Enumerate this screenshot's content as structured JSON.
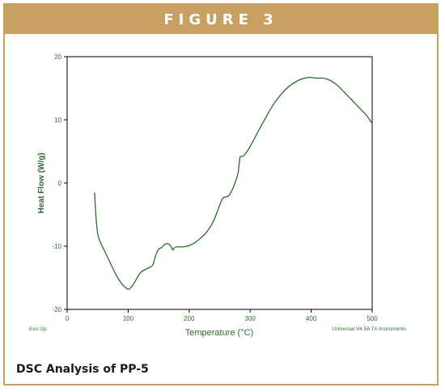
{
  "figure": {
    "header": "FIGURE 3",
    "caption": "DSC Analysis of PP-5"
  },
  "colors": {
    "accent": "#c7a062",
    "curve": "#2e6b2e",
    "axis_label": "#2e6b2e"
  },
  "chart_data": {
    "type": "line",
    "title": "",
    "xlabel": "Temperature (°C)",
    "ylabel": "Heat Flow (W/g)",
    "xlim": [
      0,
      500
    ],
    "ylim": [
      -20,
      20
    ],
    "x_ticks": [
      0,
      100,
      200,
      300,
      400,
      500
    ],
    "y_ticks": [
      -20,
      -10,
      0,
      10,
      20
    ],
    "grid": false,
    "annotations": {
      "bottom_left": "Exo Up",
      "bottom_right": "Universal V4.5A TA Instruments"
    },
    "series": [
      {
        "x": [
          45,
          47,
          50,
          55,
          60,
          70,
          80,
          90,
          100,
          105,
          110,
          120,
          130,
          140,
          145,
          150,
          155,
          160,
          165,
          170,
          173,
          175,
          180,
          190,
          200,
          210,
          220,
          230,
          240,
          250,
          255,
          260,
          265,
          270,
          275,
          280,
          283,
          285,
          290,
          300,
          320,
          340,
          360,
          380,
          395,
          400,
          410,
          420,
          430,
          440,
          450,
          460,
          470,
          480,
          490,
          500
        ],
        "y": [
          -1.5,
          -5,
          -8,
          -9.5,
          -10.5,
          -12.5,
          -14.5,
          -16,
          -16.8,
          -16.5,
          -15.8,
          -14.2,
          -13.6,
          -13,
          -11.5,
          -10.5,
          -10.2,
          -9.7,
          -9.6,
          -10,
          -10.6,
          -10.3,
          -10.1,
          -10.1,
          -9.9,
          -9.4,
          -8.6,
          -7.6,
          -6,
          -3.5,
          -2.4,
          -2.2,
          -2,
          -1.2,
          0,
          1.5,
          3.9,
          4.2,
          4.4,
          5.8,
          9.4,
          12.7,
          15,
          16.3,
          16.7,
          16.7,
          16.6,
          16.6,
          16.3,
          15.7,
          14.8,
          13.8,
          12.8,
          11.8,
          10.8,
          9.4
        ]
      }
    ]
  }
}
